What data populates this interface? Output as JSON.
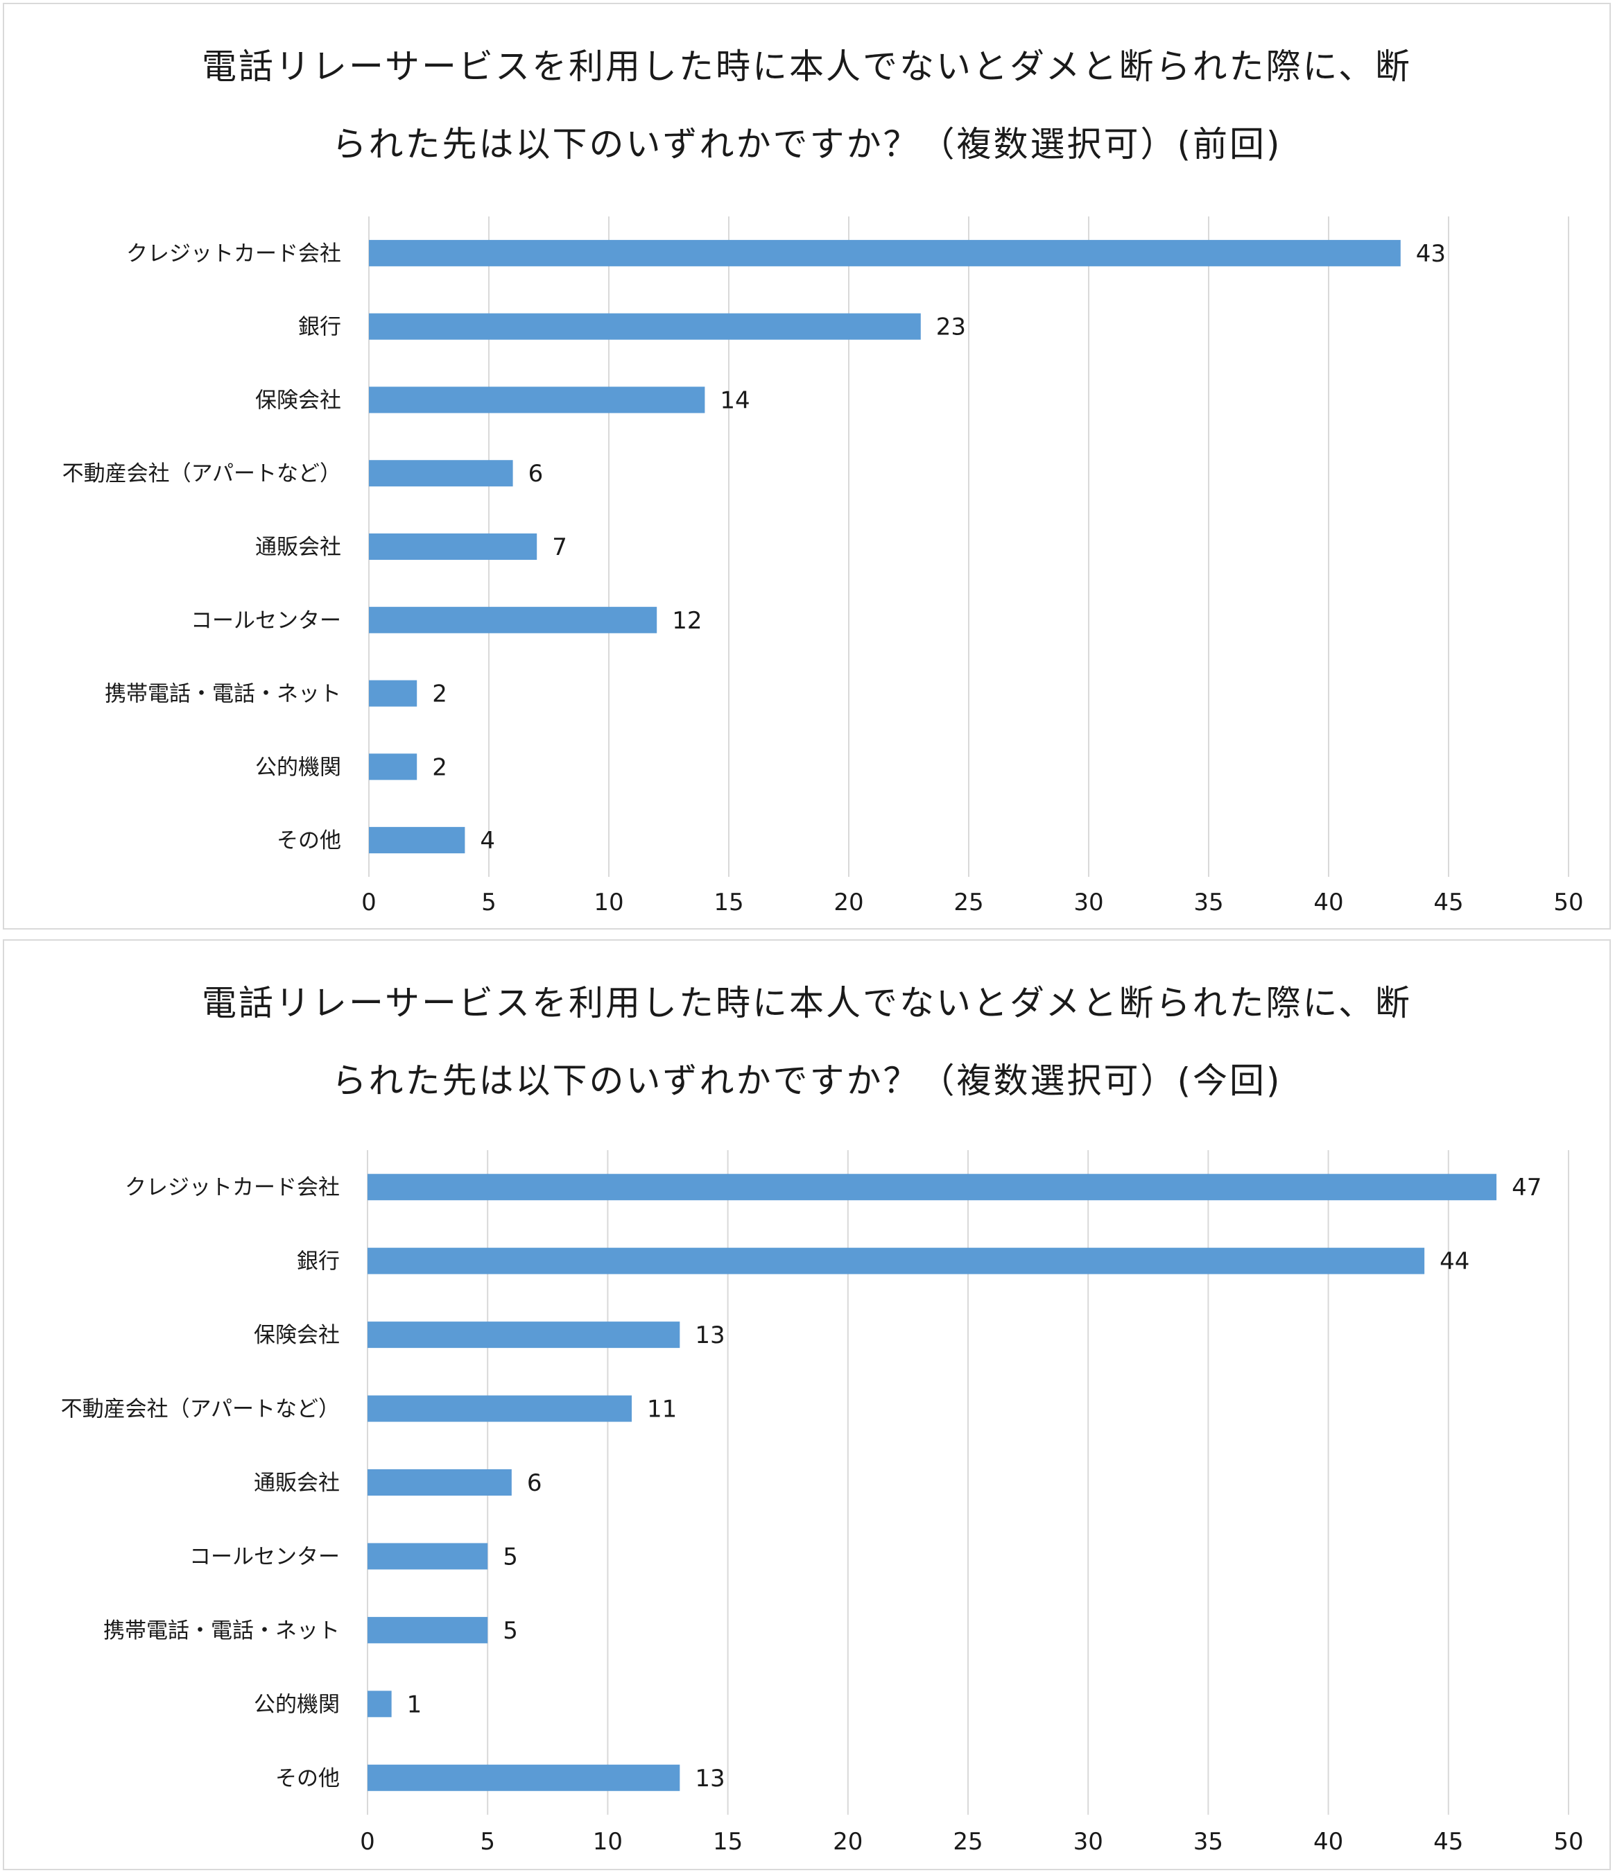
{
  "chart_data": [
    {
      "type": "bar",
      "orientation": "horizontal",
      "title_line1": "電話リレーサービスを利用した時に本人でないとダメと断られた際に、断",
      "title_line2": "られた先は以下のいずれかですか？（複数選択可）(前回)",
      "categories": [
        "クレジットカード会社",
        "銀行",
        "保険会社",
        "不動産会社（アパートなど）",
        "通販会社",
        "コールセンター",
        "携帯電話・電話・ネット",
        "公的機関",
        "その他"
      ],
      "values": [
        43,
        23,
        14,
        6,
        7,
        12,
        2,
        2,
        4
      ],
      "value_labels": [
        "43",
        "23",
        "14",
        "6",
        "7",
        "12",
        "2",
        "2",
        "4"
      ],
      "xlim": [
        0,
        50
      ],
      "ticks": [
        0,
        5,
        10,
        15,
        20,
        25,
        30,
        35,
        40,
        45,
        50
      ],
      "tick_labels": [
        "0",
        "5",
        "10",
        "15",
        "20",
        "25",
        "30",
        "35",
        "40",
        "45",
        "50"
      ],
      "grid": true,
      "legend": "none",
      "bar_color": "#5b9bd5"
    },
    {
      "type": "bar",
      "orientation": "horizontal",
      "title_line1": "電話リレーサービスを利用した時に本人でないとダメと断られた際に、断",
      "title_line2": "られた先は以下のいずれかですか？（複数選択可）(今回)",
      "categories": [
        "クレジットカード会社",
        "銀行",
        "保険会社",
        "不動産会社（アパートなど）",
        "通販会社",
        "コールセンター",
        "携帯電話・電話・ネット",
        "公的機関",
        "その他"
      ],
      "values": [
        47,
        44,
        13,
        11,
        6,
        5,
        5,
        1,
        13
      ],
      "value_labels": [
        "47",
        "44",
        "13",
        "11",
        "6",
        "5",
        "5",
        "1",
        "13"
      ],
      "xlim": [
        0,
        50
      ],
      "ticks": [
        0,
        5,
        10,
        15,
        20,
        25,
        30,
        35,
        40,
        45,
        50
      ],
      "tick_labels": [
        "0",
        "5",
        "10",
        "15",
        "20",
        "25",
        "30",
        "35",
        "40",
        "45",
        "50"
      ],
      "grid": true,
      "legend": "none",
      "bar_color": "#5b9bd5"
    }
  ]
}
